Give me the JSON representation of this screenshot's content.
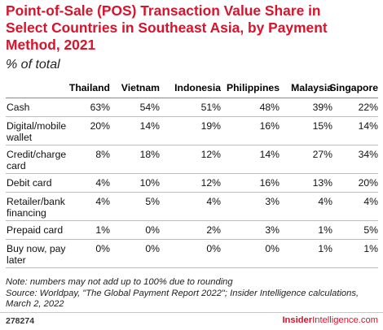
{
  "chart_data": {
    "type": "table",
    "title_lines": [
      "Point-of-Sale (POS) Transaction Value Share in",
      "Select Countries in Southeast Asia, by Payment",
      "Method, 2021"
    ],
    "subtitle": "% of total",
    "columns": [
      "Thailand",
      "Vietnam",
      "Indonesia",
      "Philippines",
      "Malaysia",
      "Singapore"
    ],
    "rows": [
      {
        "label": "Cash",
        "values": [
          "63%",
          "54%",
          "51%",
          "48%",
          "39%",
          "22%"
        ]
      },
      {
        "label": "Digital/mobile wallet",
        "values": [
          "20%",
          "14%",
          "19%",
          "16%",
          "15%",
          "14%"
        ]
      },
      {
        "label": "Credit/charge card",
        "values": [
          "8%",
          "18%",
          "12%",
          "14%",
          "27%",
          "34%"
        ]
      },
      {
        "label": "Debit card",
        "values": [
          "4%",
          "10%",
          "12%",
          "16%",
          "13%",
          "20%"
        ]
      },
      {
        "label": "Retailer/bank financing",
        "values": [
          "4%",
          "5%",
          "4%",
          "3%",
          "4%",
          "4%"
        ]
      },
      {
        "label": "Prepaid card",
        "values": [
          "1%",
          "0%",
          "2%",
          "3%",
          "1%",
          "5%"
        ]
      },
      {
        "label": "Buy now, pay later",
        "values": [
          "0%",
          "0%",
          "0%",
          "0%",
          "1%",
          "1%"
        ]
      }
    ],
    "note_lines": [
      "Note: numbers may not add up to 100% due to rounding",
      "Source: Worldpay, \"The Global Payment Report 2022\"; Insider Intelligence calculations,",
      "March 2, 2022"
    ]
  },
  "footer": {
    "chart_id": "278274",
    "brand_a": "Insider",
    "brand_b": "Intelligence",
    "brand_c": ".com"
  },
  "colors": {
    "title": "#d8132b",
    "brand": "#d8132b"
  }
}
